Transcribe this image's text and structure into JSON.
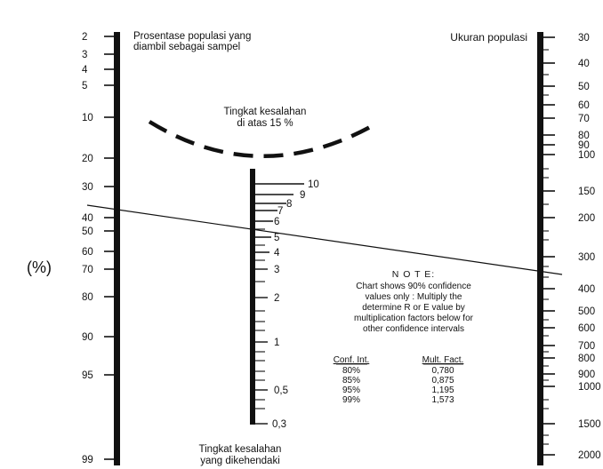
{
  "left_scale": {
    "title_line1": "Prosentase populasi yang",
    "title_line2": "diambil sebagai sampel",
    "unit_label": "(%)",
    "ticks": [
      {
        "label": "2",
        "major": true
      },
      {
        "label": "3",
        "major": true
      },
      {
        "label": "4",
        "major": true
      },
      {
        "label": "5",
        "major": true
      },
      {
        "label": "10",
        "major": true
      },
      {
        "label": "20",
        "major": true
      },
      {
        "label": "30",
        "major": true
      },
      {
        "label": "40",
        "major": true
      },
      {
        "label": "50",
        "major": true
      },
      {
        "label": "60",
        "major": true
      },
      {
        "label": "70",
        "major": true
      },
      {
        "label": "80",
        "major": true
      },
      {
        "label": "90",
        "major": true
      },
      {
        "label": "95",
        "major": true
      },
      {
        "label": "99",
        "major": true
      }
    ]
  },
  "right_scale": {
    "title": "Ukuran populasi",
    "ticks": [
      {
        "label": "30",
        "major": true
      },
      {
        "label": "40",
        "major": true
      },
      {
        "label": "50",
        "major": true
      },
      {
        "label": "60",
        "major": true
      },
      {
        "label": "70",
        "major": true
      },
      {
        "label": "80",
        "major": true
      },
      {
        "label": "90",
        "major": true
      },
      {
        "label": "100",
        "major": true
      },
      {
        "label": "150",
        "major": true
      },
      {
        "label": "200",
        "major": true
      },
      {
        "label": "300",
        "major": true
      },
      {
        "label": "400",
        "major": true
      },
      {
        "label": "500",
        "major": true
      },
      {
        "label": "600",
        "major": true
      },
      {
        "label": "700",
        "major": true
      },
      {
        "label": "800",
        "major": true
      },
      {
        "label": "900",
        "major": true
      },
      {
        "label": "1000",
        "major": true
      },
      {
        "label": "1500",
        "major": true
      },
      {
        "label": "2000",
        "major": true
      }
    ]
  },
  "middle_scale": {
    "bottom_label_line1": "Tingkat kesalahan",
    "bottom_label_line2": "yang dikehendaki",
    "ticks": [
      {
        "label": "10",
        "major": true
      },
      {
        "label": "9",
        "major": true
      },
      {
        "label": "8",
        "major": true
      },
      {
        "label": "7",
        "major": true
      },
      {
        "label": "6",
        "major": true
      },
      {
        "label": "5",
        "major": true
      },
      {
        "label": "4",
        "major": true
      },
      {
        "label": "3",
        "major": true
      },
      {
        "label": "2",
        "major": true
      },
      {
        "label": "1",
        "major": true
      },
      {
        "label": "0,5",
        "major": true
      },
      {
        "label": "0,3",
        "major": true
      }
    ]
  },
  "arc_label": {
    "line1": "Tingkat kesalahan",
    "line2": "di atas 15 %"
  },
  "note": {
    "heading": "N O T E:",
    "lines": [
      "Chart shows 90% confidence",
      "values only : Multiply the",
      "determine R or E value by",
      "multiplication factors below for",
      "other confidence intervals"
    ]
  },
  "factor_table": {
    "headers": [
      "Conf. Int.",
      "Mult. Fact."
    ],
    "rows": [
      [
        "80%",
        "0,780"
      ],
      [
        "85%",
        "0,875"
      ],
      [
        "95%",
        "1,195"
      ],
      [
        "99%",
        "1,573"
      ]
    ]
  }
}
